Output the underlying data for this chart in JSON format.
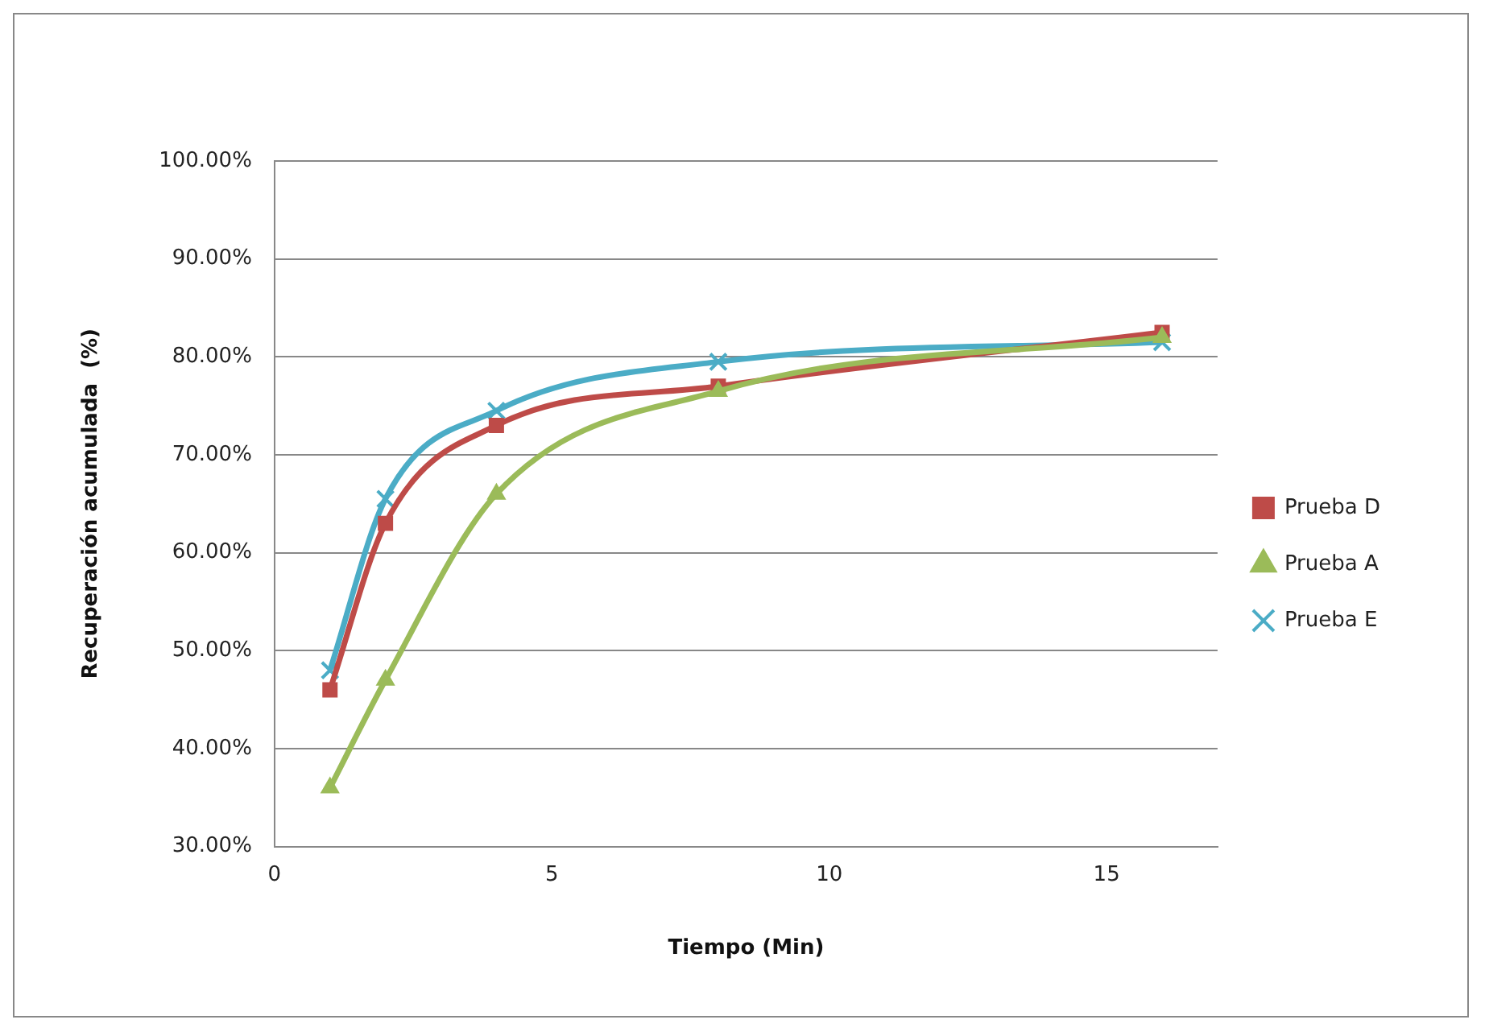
{
  "chart_data": {
    "type": "line",
    "xlabel": "Tiempo (Min)",
    "ylabel": "Recuperación acumulada  (%)",
    "x": [
      1,
      2,
      4,
      8,
      16
    ],
    "series": [
      {
        "name": "Prueba D",
        "color": "#be4b48",
        "marker": "square",
        "values": [
          46,
          63,
          73,
          77,
          82.5
        ]
      },
      {
        "name": "Prueba A",
        "color": "#9bbb59",
        "marker": "triangle",
        "values": [
          36,
          47,
          66,
          76.5,
          82
        ]
      },
      {
        "name": "Prueba E",
        "color": "#4bacc6",
        "marker": "cross",
        "values": [
          48,
          65.5,
          74.5,
          79.5,
          81.5
        ]
      }
    ],
    "xlim": [
      0,
      17
    ],
    "xticks": [
      0,
      5,
      10,
      15
    ],
    "ylim": [
      30,
      100
    ],
    "yticks": [
      {
        "value": 30,
        "label": "30.00%"
      },
      {
        "value": 40,
        "label": "40.00%"
      },
      {
        "value": 50,
        "label": "50.00%"
      },
      {
        "value": 60,
        "label": "60.00%"
      },
      {
        "value": 70,
        "label": "70.00%"
      },
      {
        "value": 80,
        "label": "80.00%"
      },
      {
        "value": 90,
        "label": "90.00%"
      },
      {
        "value": 100,
        "label": "100.00%"
      }
    ],
    "grid": "y",
    "legend": "right"
  }
}
